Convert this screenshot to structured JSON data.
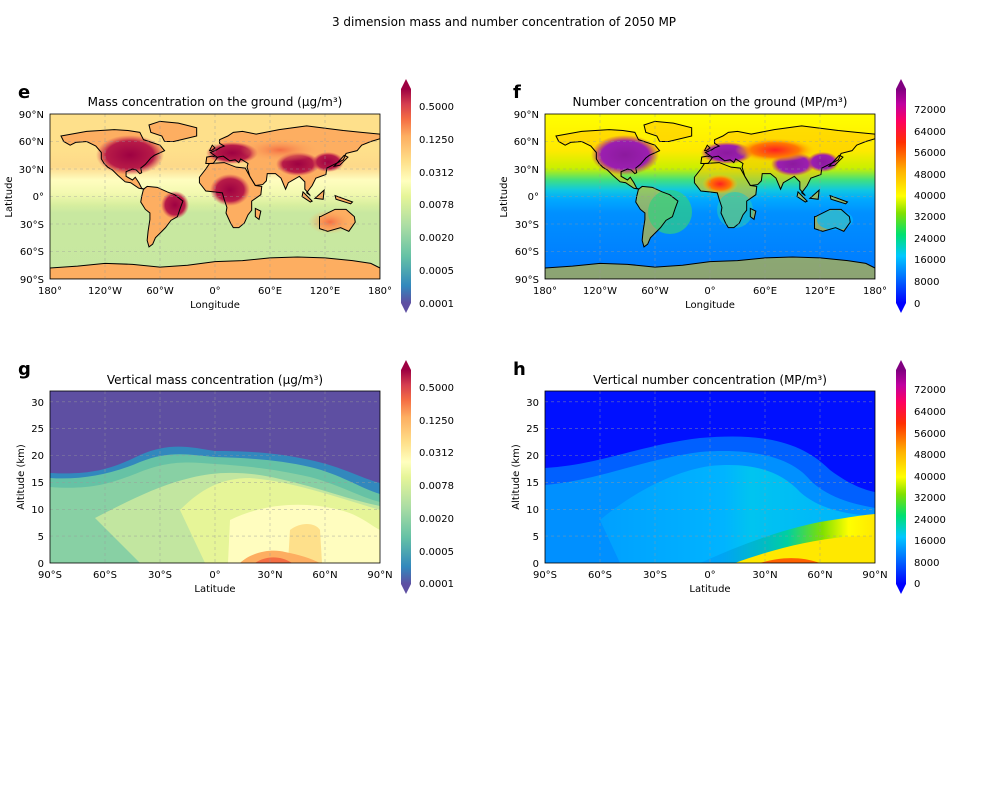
{
  "figure": {
    "suptitle": "3 dimension mass and number concentration of 2050 MP"
  },
  "chart_data": [
    {
      "panel": "e",
      "type": "heatmap",
      "projection": "map",
      "title": "Mass concentration on the ground (μg/m³)",
      "xlabel": "Longitude",
      "ylabel": "Latitude",
      "xlim": [
        -180,
        180
      ],
      "ylim": [
        -90,
        90
      ],
      "xticks": [
        -180,
        -120,
        -60,
        0,
        60,
        120,
        180
      ],
      "yticks": [
        -90,
        -60,
        -30,
        0,
        30,
        60,
        90
      ],
      "xtick_labels": [
        "180°",
        "120°W",
        "60°W",
        "0°",
        "60°E",
        "120°E",
        "180°"
      ],
      "ytick_labels": [
        "90°S",
        "60°S",
        "30°S",
        "0°",
        "30°N",
        "60°N",
        "90°N"
      ],
      "grid": true,
      "colormap": "Spectral_r",
      "colorbar": {
        "scale": "log2",
        "levels": 14,
        "ticks": [
          "0.0001",
          "0.0005",
          "0.0020",
          "0.0078",
          "0.0312",
          "0.1250",
          "0.5000"
        ],
        "extend": "both"
      }
    },
    {
      "panel": "f",
      "type": "heatmap",
      "projection": "map",
      "title": "Number concentration on the ground (MP/m³)",
      "xlabel": "Longitude",
      "ylabel": "Latitude",
      "xlim": [
        -180,
        180
      ],
      "ylim": [
        -90,
        90
      ],
      "xticks": [
        -180,
        -120,
        -60,
        0,
        60,
        120,
        180
      ],
      "yticks": [
        -90,
        -60,
        -30,
        0,
        30,
        60,
        90
      ],
      "xtick_labels": [
        "180°",
        "120°W",
        "60°W",
        "0°",
        "60°E",
        "120°E",
        "180°"
      ],
      "ytick_labels": [
        "90°S",
        "60°S",
        "30°S",
        "0°",
        "30°N",
        "60°N",
        "90°N"
      ],
      "grid": true,
      "colormap": "gist_rainbow_r",
      "colorbar": {
        "scale": "linear",
        "range": [
          0,
          80000
        ],
        "ticks": [
          "0",
          "8000",
          "16000",
          "24000",
          "32000",
          "40000",
          "48000",
          "56000",
          "64000",
          "72000"
        ],
        "extend": "both"
      }
    },
    {
      "panel": "g",
      "type": "heatmap",
      "title": "Vertical mass concentration (μg/m³)",
      "xlabel": "Latitude",
      "ylabel": "Altitude (km)",
      "xlim": [
        -90,
        90
      ],
      "ylim": [
        0,
        32
      ],
      "xticks": [
        -90,
        -60,
        -30,
        0,
        30,
        60,
        90
      ],
      "yticks": [
        0,
        5,
        10,
        15,
        20,
        25,
        30
      ],
      "xtick_labels": [
        "90°S",
        "60°S",
        "30°S",
        "0°",
        "30°N",
        "60°N",
        "90°N"
      ],
      "ytick_labels": [
        "0",
        "5",
        "10",
        "15",
        "20",
        "25",
        "30"
      ],
      "grid": true,
      "colormap": "Spectral_r",
      "colorbar": {
        "scale": "log2",
        "levels": 14,
        "ticks": [
          "0.0001",
          "0.0005",
          "0.0020",
          "0.0078",
          "0.0312",
          "0.1250",
          "0.5000"
        ],
        "extend": "both"
      }
    },
    {
      "panel": "h",
      "type": "heatmap",
      "title": "Vertical number concentration (MP/m³)",
      "xlabel": "Latitude",
      "ylabel": "Altitude (km)",
      "xlim": [
        -90,
        90
      ],
      "ylim": [
        0,
        32
      ],
      "xticks": [
        -90,
        -60,
        -30,
        0,
        30,
        60,
        90
      ],
      "yticks": [
        0,
        5,
        10,
        15,
        20,
        25,
        30
      ],
      "xtick_labels": [
        "90°S",
        "60°S",
        "30°S",
        "0°",
        "30°N",
        "60°N",
        "90°N"
      ],
      "ytick_labels": [
        "0",
        "5",
        "10",
        "15",
        "20",
        "25",
        "30"
      ],
      "grid": true,
      "colormap": "gist_rainbow_r",
      "colorbar": {
        "scale": "linear",
        "range": [
          0,
          80000
        ],
        "ticks": [
          "0",
          "8000",
          "16000",
          "24000",
          "32000",
          "40000",
          "48000",
          "56000",
          "64000",
          "72000"
        ],
        "extend": "both"
      }
    }
  ]
}
